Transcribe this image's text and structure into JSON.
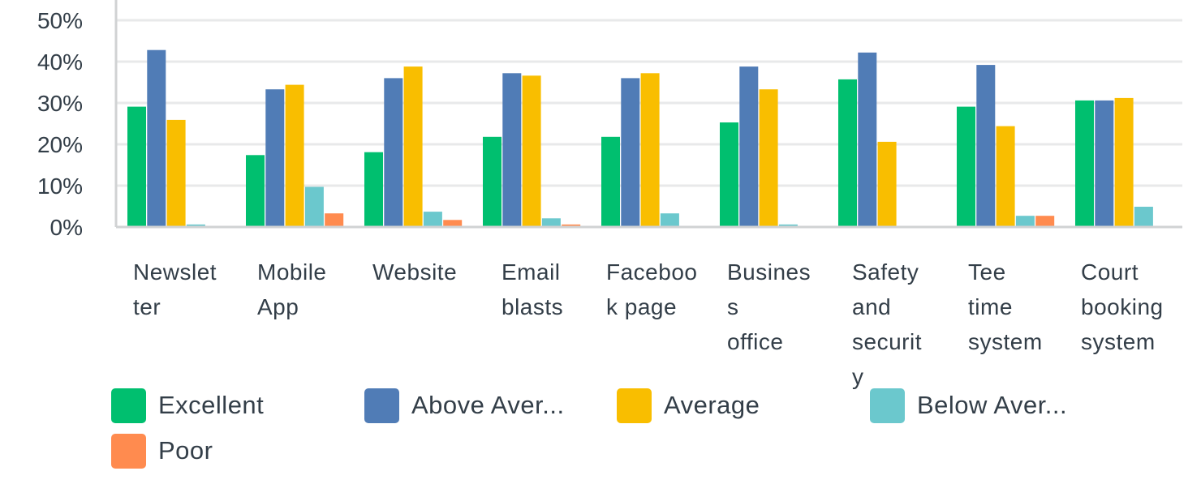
{
  "chart_data": {
    "type": "bar",
    "ylim": [
      0,
      50
    ],
    "yticks": [
      "0%",
      "10%",
      "20%",
      "30%",
      "40%",
      "50%"
    ],
    "grid": true,
    "categories": [
      [
        "Newslet",
        "ter"
      ],
      [
        "Mobile",
        "App"
      ],
      [
        "Website"
      ],
      [
        "Email",
        "blasts"
      ],
      [
        "Faceboo",
        "k page"
      ],
      [
        "Busines",
        "s",
        "office"
      ],
      [
        "Safety",
        "and",
        "securit",
        "y"
      ],
      [
        "Tee",
        "time",
        "system"
      ],
      [
        "Court",
        "booking",
        "system"
      ]
    ],
    "series": [
      {
        "name": "Excellent",
        "color": "#00bf6f",
        "values": [
          29.1,
          17.4,
          18.1,
          21.8,
          21.8,
          25.3,
          35.7,
          29.1,
          30.6
        ]
      },
      {
        "name": "Above Aver...",
        "color": "#507cb6",
        "values": [
          42.8,
          33.3,
          36.0,
          37.2,
          36.0,
          38.8,
          42.2,
          39.2,
          30.6
        ]
      },
      {
        "name": "Average",
        "color": "#f9be00",
        "values": [
          25.9,
          34.4,
          38.8,
          36.6,
          37.2,
          33.3,
          20.6,
          24.4,
          31.2
        ]
      },
      {
        "name": "Below Aver...",
        "color": "#6bc8cd",
        "values": [
          0.6,
          9.7,
          3.7,
          2.1,
          3.3,
          0.6,
          0,
          2.7,
          4.9
        ]
      },
      {
        "name": "Poor",
        "color": "#ff8b4f",
        "values": [
          0,
          3.3,
          1.7,
          0.6,
          0,
          0,
          0,
          2.7,
          0
        ]
      }
    ],
    "legend_position": "bottom"
  }
}
